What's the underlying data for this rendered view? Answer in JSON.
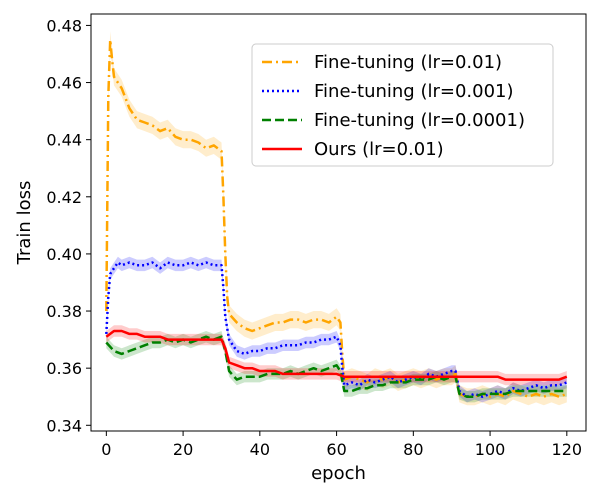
{
  "chart_data": {
    "type": "line",
    "xlabel": "epoch",
    "ylabel": "Train loss",
    "xlim": [
      -4,
      125
    ],
    "ylim": [
      0.338,
      0.484
    ],
    "xticks": [
      0,
      20,
      40,
      60,
      80,
      100,
      120
    ],
    "yticks": [
      0.34,
      0.36,
      0.38,
      0.4,
      0.42,
      0.44,
      0.46,
      0.48
    ],
    "ytick_labels": [
      "0.34",
      "0.36",
      "0.38",
      "0.40",
      "0.42",
      "0.44",
      "0.46",
      "0.48"
    ],
    "legend_position": "top-right",
    "series": [
      {
        "name": "Fine-tuning (lr=0.01)",
        "color": "#FFA500",
        "dash": "dashdot",
        "band": 0.003,
        "points": [
          [
            0,
            0.38
          ],
          [
            0.5,
            0.455
          ],
          [
            1,
            0.475
          ],
          [
            1.5,
            0.468
          ],
          [
            2,
            0.462
          ],
          [
            4,
            0.458
          ],
          [
            6,
            0.451
          ],
          [
            8,
            0.447
          ],
          [
            10,
            0.446
          ],
          [
            12,
            0.445
          ],
          [
            14,
            0.443
          ],
          [
            16,
            0.444
          ],
          [
            18,
            0.441
          ],
          [
            20,
            0.44
          ],
          [
            22,
            0.44
          ],
          [
            24,
            0.439
          ],
          [
            26,
            0.437
          ],
          [
            28,
            0.438
          ],
          [
            30,
            0.436
          ],
          [
            30.5,
            0.42
          ],
          [
            31,
            0.4
          ],
          [
            31.5,
            0.385
          ],
          [
            32,
            0.379
          ],
          [
            34,
            0.376
          ],
          [
            36,
            0.374
          ],
          [
            38,
            0.373
          ],
          [
            40,
            0.374
          ],
          [
            42,
            0.375
          ],
          [
            44,
            0.376
          ],
          [
            46,
            0.376
          ],
          [
            48,
            0.377
          ],
          [
            50,
            0.377
          ],
          [
            52,
            0.376
          ],
          [
            54,
            0.377
          ],
          [
            56,
            0.377
          ],
          [
            58,
            0.376
          ],
          [
            60,
            0.378
          ],
          [
            61,
            0.376
          ],
          [
            61.5,
            0.365
          ],
          [
            62,
            0.356
          ],
          [
            64,
            0.357
          ],
          [
            66,
            0.356
          ],
          [
            68,
            0.355
          ],
          [
            70,
            0.357
          ],
          [
            72,
            0.356
          ],
          [
            74,
            0.357
          ],
          [
            76,
            0.355
          ],
          [
            78,
            0.356
          ],
          [
            80,
            0.357
          ],
          [
            82,
            0.356
          ],
          [
            84,
            0.357
          ],
          [
            86,
            0.356
          ],
          [
            88,
            0.357
          ],
          [
            90,
            0.357
          ],
          [
            91,
            0.358
          ],
          [
            92,
            0.351
          ],
          [
            94,
            0.35
          ],
          [
            96,
            0.35
          ],
          [
            98,
            0.351
          ],
          [
            100,
            0.35
          ],
          [
            102,
            0.351
          ],
          [
            104,
            0.35
          ],
          [
            106,
            0.352
          ],
          [
            108,
            0.351
          ],
          [
            110,
            0.35
          ],
          [
            112,
            0.351
          ],
          [
            114,
            0.35
          ],
          [
            116,
            0.351
          ],
          [
            118,
            0.35
          ],
          [
            120,
            0.351
          ]
        ]
      },
      {
        "name": "Fine-tuning (lr=0.001)",
        "color": "#0000FF",
        "dash": "dotted",
        "band": 0.002,
        "points": [
          [
            0,
            0.372
          ],
          [
            0.5,
            0.385
          ],
          [
            1,
            0.393
          ],
          [
            2,
            0.395
          ],
          [
            3,
            0.397
          ],
          [
            4,
            0.396
          ],
          [
            6,
            0.397
          ],
          [
            8,
            0.396
          ],
          [
            10,
            0.396
          ],
          [
            12,
            0.397
          ],
          [
            14,
            0.395
          ],
          [
            16,
            0.397
          ],
          [
            18,
            0.396
          ],
          [
            20,
            0.396
          ],
          [
            22,
            0.397
          ],
          [
            24,
            0.396
          ],
          [
            26,
            0.397
          ],
          [
            28,
            0.396
          ],
          [
            30,
            0.396
          ],
          [
            30.5,
            0.388
          ],
          [
            31,
            0.378
          ],
          [
            32,
            0.37
          ],
          [
            34,
            0.366
          ],
          [
            36,
            0.365
          ],
          [
            38,
            0.366
          ],
          [
            40,
            0.366
          ],
          [
            42,
            0.367
          ],
          [
            44,
            0.367
          ],
          [
            46,
            0.368
          ],
          [
            48,
            0.368
          ],
          [
            50,
            0.368
          ],
          [
            52,
            0.369
          ],
          [
            54,
            0.369
          ],
          [
            56,
            0.37
          ],
          [
            58,
            0.37
          ],
          [
            60,
            0.371
          ],
          [
            61,
            0.368
          ],
          [
            61.5,
            0.36
          ],
          [
            62,
            0.354
          ],
          [
            64,
            0.355
          ],
          [
            66,
            0.354
          ],
          [
            68,
            0.356
          ],
          [
            70,
            0.355
          ],
          [
            72,
            0.356
          ],
          [
            74,
            0.357
          ],
          [
            76,
            0.355
          ],
          [
            78,
            0.356
          ],
          [
            80,
            0.357
          ],
          [
            82,
            0.356
          ],
          [
            84,
            0.358
          ],
          [
            86,
            0.357
          ],
          [
            88,
            0.358
          ],
          [
            90,
            0.359
          ],
          [
            91,
            0.359
          ],
          [
            92,
            0.352
          ],
          [
            94,
            0.35
          ],
          [
            96,
            0.351
          ],
          [
            98,
            0.35
          ],
          [
            100,
            0.351
          ],
          [
            102,
            0.352
          ],
          [
            104,
            0.351
          ],
          [
            106,
            0.353
          ],
          [
            108,
            0.352
          ],
          [
            110,
            0.353
          ],
          [
            112,
            0.354
          ],
          [
            114,
            0.353
          ],
          [
            116,
            0.354
          ],
          [
            118,
            0.354
          ],
          [
            120,
            0.355
          ]
        ]
      },
      {
        "name": "Fine-tuning (lr=0.0001)",
        "color": "#008000",
        "dash": "dashed",
        "band": 0.002,
        "points": [
          [
            0,
            0.369
          ],
          [
            2,
            0.366
          ],
          [
            4,
            0.365
          ],
          [
            6,
            0.366
          ],
          [
            8,
            0.367
          ],
          [
            10,
            0.368
          ],
          [
            12,
            0.369
          ],
          [
            14,
            0.369
          ],
          [
            16,
            0.37
          ],
          [
            18,
            0.369
          ],
          [
            20,
            0.37
          ],
          [
            22,
            0.369
          ],
          [
            24,
            0.37
          ],
          [
            26,
            0.371
          ],
          [
            28,
            0.37
          ],
          [
            30,
            0.371
          ],
          [
            31,
            0.366
          ],
          [
            32,
            0.359
          ],
          [
            34,
            0.356
          ],
          [
            36,
            0.357
          ],
          [
            38,
            0.357
          ],
          [
            40,
            0.357
          ],
          [
            42,
            0.358
          ],
          [
            44,
            0.358
          ],
          [
            46,
            0.358
          ],
          [
            48,
            0.359
          ],
          [
            50,
            0.358
          ],
          [
            52,
            0.359
          ],
          [
            54,
            0.36
          ],
          [
            56,
            0.359
          ],
          [
            58,
            0.36
          ],
          [
            60,
            0.361
          ],
          [
            61,
            0.359
          ],
          [
            62,
            0.352
          ],
          [
            64,
            0.352
          ],
          [
            66,
            0.353
          ],
          [
            68,
            0.353
          ],
          [
            70,
            0.354
          ],
          [
            72,
            0.354
          ],
          [
            74,
            0.355
          ],
          [
            76,
            0.355
          ],
          [
            78,
            0.355
          ],
          [
            80,
            0.356
          ],
          [
            82,
            0.356
          ],
          [
            84,
            0.356
          ],
          [
            86,
            0.357
          ],
          [
            88,
            0.356
          ],
          [
            90,
            0.357
          ],
          [
            91,
            0.357
          ],
          [
            92,
            0.351
          ],
          [
            94,
            0.35
          ],
          [
            96,
            0.35
          ],
          [
            98,
            0.351
          ],
          [
            100,
            0.351
          ],
          [
            102,
            0.351
          ],
          [
            104,
            0.351
          ],
          [
            106,
            0.352
          ],
          [
            108,
            0.352
          ],
          [
            110,
            0.352
          ],
          [
            112,
            0.352
          ],
          [
            114,
            0.352
          ],
          [
            116,
            0.352
          ],
          [
            118,
            0.352
          ],
          [
            120,
            0.352
          ]
        ]
      },
      {
        "name": "Ours (lr=0.01)",
        "color": "#FF0000",
        "dash": "solid",
        "band": 0.002,
        "points": [
          [
            0,
            0.371
          ],
          [
            2,
            0.373
          ],
          [
            4,
            0.373
          ],
          [
            6,
            0.372
          ],
          [
            8,
            0.372
          ],
          [
            10,
            0.371
          ],
          [
            12,
            0.371
          ],
          [
            14,
            0.371
          ],
          [
            16,
            0.37
          ],
          [
            18,
            0.37
          ],
          [
            20,
            0.37
          ],
          [
            22,
            0.37
          ],
          [
            24,
            0.37
          ],
          [
            26,
            0.37
          ],
          [
            28,
            0.37
          ],
          [
            30,
            0.37
          ],
          [
            31,
            0.367
          ],
          [
            32,
            0.362
          ],
          [
            34,
            0.361
          ],
          [
            36,
            0.36
          ],
          [
            38,
            0.36
          ],
          [
            40,
            0.359
          ],
          [
            42,
            0.359
          ],
          [
            44,
            0.359
          ],
          [
            46,
            0.358
          ],
          [
            48,
            0.358
          ],
          [
            50,
            0.358
          ],
          [
            52,
            0.358
          ],
          [
            54,
            0.358
          ],
          [
            56,
            0.358
          ],
          [
            58,
            0.358
          ],
          [
            60,
            0.358
          ],
          [
            62,
            0.357
          ],
          [
            64,
            0.357
          ],
          [
            66,
            0.357
          ],
          [
            68,
            0.357
          ],
          [
            70,
            0.357
          ],
          [
            72,
            0.357
          ],
          [
            74,
            0.357
          ],
          [
            76,
            0.357
          ],
          [
            78,
            0.357
          ],
          [
            80,
            0.357
          ],
          [
            82,
            0.357
          ],
          [
            84,
            0.357
          ],
          [
            86,
            0.357
          ],
          [
            88,
            0.357
          ],
          [
            90,
            0.357
          ],
          [
            92,
            0.357
          ],
          [
            94,
            0.357
          ],
          [
            96,
            0.357
          ],
          [
            98,
            0.357
          ],
          [
            100,
            0.357
          ],
          [
            102,
            0.357
          ],
          [
            104,
            0.356
          ],
          [
            106,
            0.356
          ],
          [
            108,
            0.356
          ],
          [
            110,
            0.356
          ],
          [
            112,
            0.356
          ],
          [
            114,
            0.356
          ],
          [
            116,
            0.356
          ],
          [
            118,
            0.356
          ],
          [
            120,
            0.357
          ]
        ]
      }
    ]
  }
}
